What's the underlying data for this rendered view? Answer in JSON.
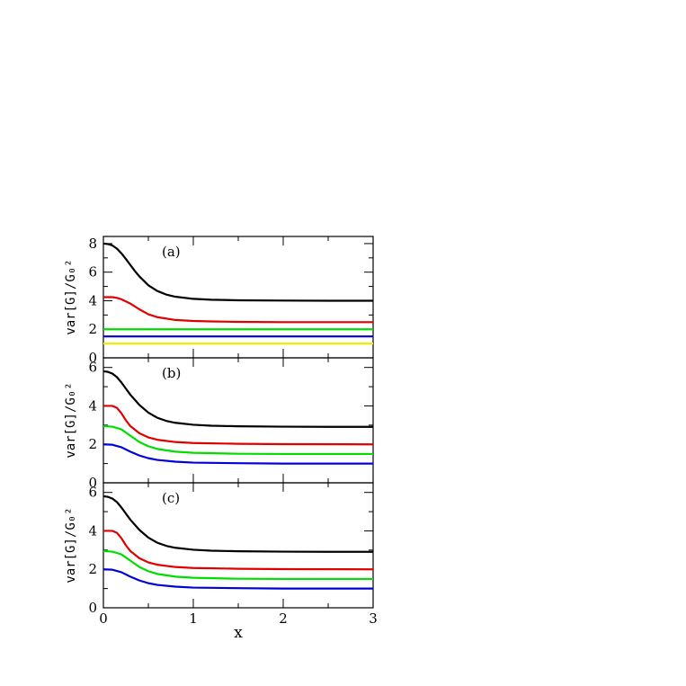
{
  "chart_data": [
    {
      "type": "line",
      "panel_label": "(a)",
      "ylabel": "var[G]/G₀²",
      "xlim": [
        0,
        3
      ],
      "ylim": [
        0,
        8.5
      ],
      "yticks": [
        0,
        2,
        4,
        6,
        8
      ],
      "xticks": [
        0,
        1,
        2,
        3
      ],
      "show_x_tick_labels": false,
      "series": [
        {
          "color": "#000000",
          "x": [
            0,
            0.05,
            0.1,
            0.15,
            0.2,
            0.25,
            0.3,
            0.35,
            0.4,
            0.5,
            0.6,
            0.7,
            0.8,
            1.0,
            1.2,
            1.5,
            2.0,
            2.5,
            3.0
          ],
          "y": [
            8.0,
            7.97,
            7.87,
            7.65,
            7.32,
            6.92,
            6.5,
            6.08,
            5.7,
            5.08,
            4.68,
            4.43,
            4.28,
            4.13,
            4.07,
            4.03,
            4.01,
            4.0,
            4.0
          ]
        },
        {
          "color": "#e00000",
          "x": [
            0,
            0.1,
            0.15,
            0.2,
            0.3,
            0.4,
            0.5,
            0.6,
            0.8,
            1.0,
            1.2,
            1.5,
            2.0,
            3.0
          ],
          "y": [
            4.25,
            4.25,
            4.2,
            4.1,
            3.8,
            3.4,
            3.05,
            2.85,
            2.65,
            2.58,
            2.55,
            2.52,
            2.5,
            2.5
          ]
        },
        {
          "color": "#00dd00",
          "x": [
            0,
            3.0
          ],
          "y": [
            2.0,
            2.0
          ]
        },
        {
          "color": "#0000dd",
          "x": [
            0,
            3.0
          ],
          "y": [
            1.5,
            1.5
          ]
        },
        {
          "color": "#eeee00",
          "x": [
            0,
            3.0
          ],
          "y": [
            1.0,
            1.0
          ]
        }
      ]
    },
    {
      "type": "line",
      "panel_label": "(b)",
      "ylabel": "var[G]/G₀²",
      "xlim": [
        0,
        3
      ],
      "ylim": [
        0,
        6.5
      ],
      "yticks": [
        0,
        2,
        4,
        6
      ],
      "xticks": [
        0,
        1,
        2,
        3
      ],
      "show_x_tick_labels": false,
      "series": [
        {
          "color": "#000000",
          "x": [
            0,
            0.05,
            0.1,
            0.15,
            0.2,
            0.25,
            0.3,
            0.4,
            0.5,
            0.6,
            0.7,
            0.8,
            1.0,
            1.2,
            1.5,
            2.0,
            2.5,
            3.0
          ],
          "y": [
            5.8,
            5.77,
            5.68,
            5.5,
            5.22,
            4.9,
            4.58,
            4.05,
            3.65,
            3.38,
            3.22,
            3.12,
            3.02,
            2.97,
            2.94,
            2.92,
            2.91,
            2.91
          ]
        },
        {
          "color": "#e00000",
          "x": [
            0,
            0.1,
            0.15,
            0.2,
            0.25,
            0.3,
            0.4,
            0.5,
            0.6,
            0.8,
            1.0,
            1.5,
            2.0,
            3.0
          ],
          "y": [
            4.0,
            4.0,
            3.9,
            3.62,
            3.25,
            2.95,
            2.58,
            2.36,
            2.24,
            2.12,
            2.07,
            2.03,
            2.01,
            2.0
          ]
        },
        {
          "color": "#00dd00",
          "x": [
            0,
            0.1,
            0.2,
            0.3,
            0.4,
            0.5,
            0.6,
            0.8,
            1.0,
            1.5,
            2.0,
            3.0
          ],
          "y": [
            2.95,
            2.92,
            2.78,
            2.45,
            2.12,
            1.9,
            1.76,
            1.62,
            1.56,
            1.51,
            1.5,
            1.5
          ]
        },
        {
          "color": "#0000dd",
          "x": [
            0,
            0.1,
            0.2,
            0.3,
            0.4,
            0.5,
            0.6,
            0.8,
            1.0,
            1.5,
            2.0,
            3.0
          ],
          "y": [
            2.0,
            1.98,
            1.85,
            1.62,
            1.42,
            1.28,
            1.19,
            1.1,
            1.05,
            1.02,
            1.0,
            1.0
          ]
        }
      ]
    },
    {
      "type": "line",
      "panel_label": "(c)",
      "ylabel": "var[G]/G₀²",
      "xlabel": "x",
      "xlim": [
        0,
        3
      ],
      "ylim": [
        0,
        6.5
      ],
      "yticks": [
        0,
        2,
        4,
        6
      ],
      "xticks": [
        0,
        1,
        2,
        3
      ],
      "show_x_tick_labels": true,
      "series": [
        {
          "color": "#000000",
          "x": [
            0,
            0.05,
            0.1,
            0.15,
            0.2,
            0.25,
            0.3,
            0.4,
            0.5,
            0.6,
            0.7,
            0.8,
            1.0,
            1.2,
            1.5,
            2.0,
            2.5,
            3.0
          ],
          "y": [
            5.8,
            5.77,
            5.68,
            5.5,
            5.22,
            4.9,
            4.58,
            4.05,
            3.65,
            3.38,
            3.22,
            3.12,
            3.02,
            2.97,
            2.94,
            2.92,
            2.91,
            2.91
          ]
        },
        {
          "color": "#e00000",
          "x": [
            0,
            0.1,
            0.15,
            0.2,
            0.25,
            0.3,
            0.4,
            0.5,
            0.6,
            0.8,
            1.0,
            1.5,
            2.0,
            3.0
          ],
          "y": [
            4.0,
            4.0,
            3.9,
            3.62,
            3.25,
            2.95,
            2.58,
            2.36,
            2.24,
            2.12,
            2.07,
            2.03,
            2.01,
            2.0
          ]
        },
        {
          "color": "#00dd00",
          "x": [
            0,
            0.1,
            0.2,
            0.3,
            0.4,
            0.5,
            0.6,
            0.8,
            1.0,
            1.5,
            2.0,
            3.0
          ],
          "y": [
            2.95,
            2.92,
            2.78,
            2.45,
            2.12,
            1.9,
            1.76,
            1.62,
            1.56,
            1.51,
            1.5,
            1.5
          ]
        },
        {
          "color": "#0000dd",
          "x": [
            0,
            0.1,
            0.2,
            0.3,
            0.4,
            0.5,
            0.6,
            0.8,
            1.0,
            1.5,
            2.0,
            3.0
          ],
          "y": [
            2.0,
            1.98,
            1.85,
            1.62,
            1.42,
            1.28,
            1.19,
            1.1,
            1.05,
            1.02,
            1.0,
            1.0
          ]
        }
      ]
    }
  ]
}
